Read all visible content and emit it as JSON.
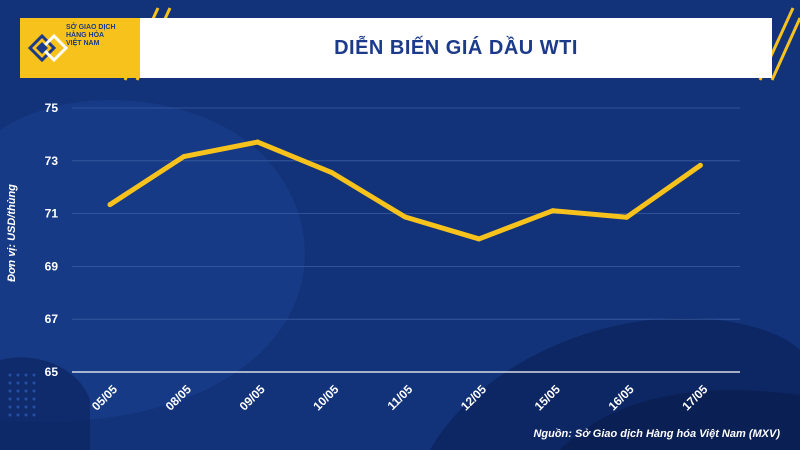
{
  "header": {
    "logo_lines": [
      "SỞ GIAO DỊCH",
      "HÀNG HÓA",
      "VIỆT NAM"
    ],
    "title": "DIỄN BIẾN GIÁ DẦU WTI"
  },
  "source": "Nguồn: Sở Giao dịch Hàng hóa Việt Nam (MXV)",
  "colors": {
    "background": "#123379",
    "line": "#f6c21b",
    "accent": "#f6c21b",
    "title": "#1b3a8a"
  },
  "chart_data": {
    "type": "line",
    "title": "DIỄN BIẾN GIÁ DẦU WTI",
    "xlabel": "",
    "ylabel": "Đơn vị: USD/thùng",
    "categories": [
      "05/05",
      "08/05",
      "09/05",
      "10/05",
      "11/05",
      "12/05",
      "15/05",
      "16/05",
      "17/05"
    ],
    "series": [
      {
        "values": [
          71.34,
          73.16,
          73.71,
          72.56,
          70.87,
          70.04,
          71.11,
          70.86,
          72.83
        ]
      }
    ],
    "ylim": [
      65,
      75
    ],
    "yticks": [
      65,
      67,
      69,
      71,
      73,
      75
    ],
    "grid": true,
    "legend": "none"
  }
}
